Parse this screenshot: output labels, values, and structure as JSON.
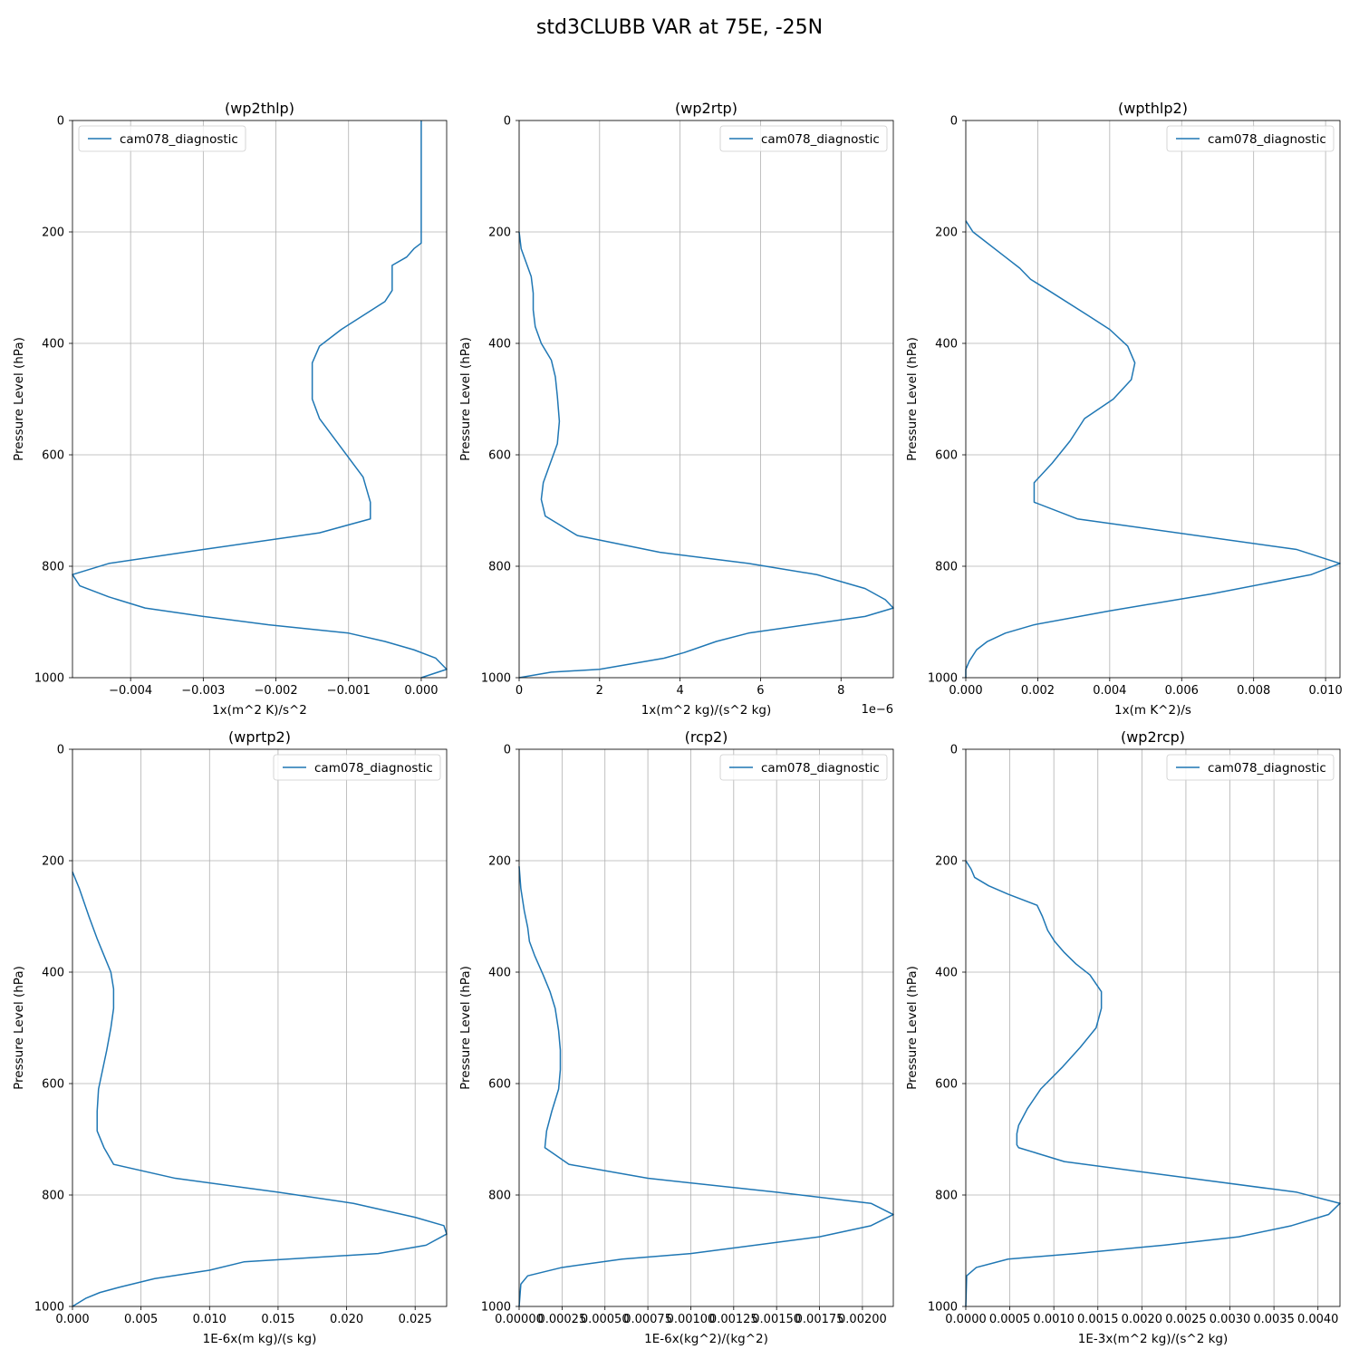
{
  "figure": {
    "title": "std3CLUBB VAR at 75E, -25N"
  },
  "chart_data": [
    {
      "type": "line",
      "title": "(wp2thlp)",
      "xlabel": "1x(m^2 K)/s^2",
      "ylabel": "Pressure Level (hPa)",
      "xlim": [
        -0.0048,
        0.00035
      ],
      "ylim": [
        1000,
        0
      ],
      "xticks": [
        -0.004,
        -0.003,
        -0.002,
        -0.001,
        0.0
      ],
      "xtick_labels": [
        "−0.004",
        "−0.003",
        "−0.002",
        "−0.001",
        "0.000"
      ],
      "yticks": [
        0,
        200,
        400,
        600,
        800,
        1000
      ],
      "ytick_labels": [
        "0",
        "200",
        "400",
        "600",
        "800",
        "1000"
      ],
      "offset_text": "",
      "grid": true,
      "legend": {
        "position": "upper-left",
        "entries": [
          "cam078_diagnostic"
        ]
      },
      "series": [
        {
          "name": "cam078_diagnostic",
          "color": "#1f77b4",
          "x": [
            0.0,
            0.0,
            0.0,
            0.0,
            0.0,
            0.0,
            0.0,
            -0.0001,
            -0.0002,
            -0.0004,
            -0.0004,
            -0.0004,
            -0.0005,
            -0.0008,
            -0.0011,
            -0.0014,
            -0.0015,
            -0.0015,
            -0.0015,
            -0.0014,
            -0.0012,
            -0.001,
            -0.0008,
            -0.0007,
            -0.0007,
            -0.0014,
            -0.003,
            -0.0043,
            -0.0048,
            -0.0047,
            -0.0043,
            -0.0038,
            -0.003,
            -0.0021,
            -0.001,
            -0.0005,
            -0.0001,
            0.0002,
            0.00035,
            0.0
          ],
          "y": [
            0,
            50,
            100,
            150,
            200,
            210,
            220,
            230,
            245,
            260,
            280,
            305,
            325,
            350,
            375,
            405,
            435,
            465,
            500,
            535,
            570,
            605,
            640,
            685,
            715,
            740,
            770,
            795,
            815,
            835,
            855,
            875,
            890,
            905,
            920,
            935,
            950,
            965,
            985,
            1000
          ]
        }
      ]
    },
    {
      "type": "line",
      "title": "(wp2rtp)",
      "xlabel": "1x(m^2 kg)/(s^2 kg)",
      "ylabel": "Pressure Level (hPa)",
      "xlim": [
        0,
        9.3
      ],
      "ylim": [
        1000,
        0
      ],
      "xticks": [
        0,
        2,
        4,
        6,
        8
      ],
      "xtick_labels": [
        "0",
        "2",
        "4",
        "6",
        "8"
      ],
      "yticks": [
        0,
        200,
        400,
        600,
        800,
        1000
      ],
      "ytick_labels": [
        "0",
        "200",
        "400",
        "600",
        "800",
        "1000"
      ],
      "offset_text": "1e−6",
      "grid": true,
      "legend": {
        "position": "upper-right",
        "entries": [
          "cam078_diagnostic"
        ]
      },
      "series": [
        {
          "name": "cam078_diagnostic",
          "color": "#1f77b4",
          "x": [
            0,
            0.05,
            0.3,
            0.35,
            0.35,
            0.4,
            0.55,
            0.8,
            0.9,
            0.95,
            1.0,
            0.95,
            0.75,
            0.6,
            0.55,
            0.65,
            1.45,
            3.5,
            5.7,
            7.4,
            8.6,
            9.1,
            9.3,
            8.6,
            5.7,
            4.9,
            4.1,
            3.6,
            2.8,
            2.0,
            0.8,
            0
          ],
          "y": [
            200,
            230,
            280,
            310,
            340,
            370,
            400,
            430,
            460,
            495,
            540,
            580,
            620,
            650,
            680,
            710,
            745,
            775,
            795,
            815,
            840,
            860,
            875,
            890,
            920,
            935,
            955,
            965,
            975,
            985,
            990,
            1000
          ]
        }
      ]
    },
    {
      "type": "line",
      "title": "(wpthlp2)",
      "xlabel": "1x(m K^2)/s",
      "ylabel": "Pressure Level (hPa)",
      "xlim": [
        0,
        0.0104
      ],
      "ylim": [
        1000,
        0
      ],
      "xticks": [
        0.0,
        0.002,
        0.004,
        0.006,
        0.008,
        0.01
      ],
      "xtick_labels": [
        "0.000",
        "0.002",
        "0.004",
        "0.006",
        "0.008",
        "0.010"
      ],
      "yticks": [
        0,
        200,
        400,
        600,
        800,
        1000
      ],
      "ytick_labels": [
        "0",
        "200",
        "400",
        "600",
        "800",
        "1000"
      ],
      "offset_text": "",
      "grid": true,
      "legend": {
        "position": "upper-right",
        "entries": [
          "cam078_diagnostic"
        ]
      },
      "series": [
        {
          "name": "cam078_diagnostic",
          "color": "#1f77b4",
          "x": [
            0,
            0.0002,
            0.0004,
            0.0011,
            0.0015,
            0.0018,
            0.0023,
            0.0034,
            0.004,
            0.0045,
            0.0047,
            0.0046,
            0.0041,
            0.0033,
            0.0029,
            0.0024,
            0.0019,
            0.0019,
            0.0019,
            0.0031,
            0.0092,
            0.0104,
            0.0096,
            0.0068,
            0.004,
            0.0019,
            0.0011,
            0.0006,
            0.0003,
            0.0001,
            0,
            0
          ],
          "y": [
            180,
            200,
            210,
            245,
            265,
            285,
            305,
            350,
            375,
            405,
            435,
            465,
            500,
            535,
            575,
            615,
            650,
            665,
            685,
            715,
            770,
            795,
            815,
            850,
            880,
            905,
            920,
            935,
            950,
            970,
            985,
            1000
          ]
        }
      ]
    },
    {
      "type": "line",
      "title": "(wprtp2)",
      "xlabel": "1E-6x(m kg)/(s kg)",
      "ylabel": "Pressure Level (hPa)",
      "xlim": [
        0,
        0.0273
      ],
      "ylim": [
        1000,
        0
      ],
      "xticks": [
        0.0,
        0.005,
        0.01,
        0.015,
        0.02,
        0.025
      ],
      "xtick_labels": [
        "0.000",
        "0.005",
        "0.010",
        "0.015",
        "0.020",
        "0.025"
      ],
      "yticks": [
        0,
        200,
        400,
        600,
        800,
        1000
      ],
      "ytick_labels": [
        "0",
        "200",
        "400",
        "600",
        "800",
        "1000"
      ],
      "offset_text": "",
      "grid": true,
      "legend": {
        "position": "upper-right",
        "entries": [
          "cam078_diagnostic"
        ]
      },
      "series": [
        {
          "name": "cam078_diagnostic",
          "color": "#1f77b4",
          "x": [
            0,
            0.0005,
            0.0012,
            0.0018,
            0.0023,
            0.0028,
            0.003,
            0.003,
            0.0028,
            0.0025,
            0.0022,
            0.0019,
            0.0018,
            0.0018,
            0.0023,
            0.003,
            0.0075,
            0.015,
            0.0205,
            0.025,
            0.0271,
            0.0273,
            0.0258,
            0.0223,
            0.0125,
            0.01,
            0.006,
            0.0035,
            0.002,
            0.001,
            0
          ],
          "y": [
            220,
            250,
            300,
            340,
            370,
            400,
            430,
            465,
            500,
            540,
            575,
            610,
            650,
            685,
            715,
            745,
            770,
            795,
            815,
            840,
            855,
            870,
            890,
            905,
            920,
            935,
            950,
            965,
            975,
            985,
            1000
          ]
        }
      ]
    },
    {
      "type": "line",
      "title": "(rcp2)",
      "xlabel": "1E-6x(kg^2)/(kg^2)",
      "ylabel": "Pressure Level (hPa)",
      "xlim": [
        0,
        0.00218
      ],
      "ylim": [
        1000,
        0
      ],
      "xticks": [
        0.0,
        0.00025,
        0.0005,
        0.00075,
        0.001,
        0.00125,
        0.0015,
        0.00175,
        0.002
      ],
      "xtick_labels": [
        "0.00000",
        "0.00025",
        "0.00050",
        "0.00075",
        "0.00100",
        "0.00125",
        "0.00150",
        "0.00175",
        "0.00200"
      ],
      "yticks": [
        0,
        200,
        400,
        600,
        800,
        1000
      ],
      "ytick_labels": [
        "0",
        "200",
        "400",
        "600",
        "800",
        "1000"
      ],
      "offset_text": "",
      "grid": true,
      "legend": {
        "position": "upper-right",
        "entries": [
          "cam078_diagnostic"
        ]
      },
      "series": [
        {
          "name": "cam078_diagnostic",
          "color": "#1f77b4",
          "x": [
            0,
            1e-05,
            3e-05,
            5e-05,
            6e-05,
            9e-05,
            0.00014,
            0.00018,
            0.00021,
            0.00023,
            0.00024,
            0.00024,
            0.00023,
            0.00019,
            0.00016,
            0.00015,
            0.00029,
            0.00075,
            0.0015,
            0.00205,
            0.00218,
            0.00205,
            0.00175,
            0.001,
            0.0006,
            0.00025,
            5e-05,
            1e-05,
            0
          ],
          "y": [
            210,
            250,
            290,
            320,
            345,
            370,
            405,
            435,
            465,
            505,
            540,
            575,
            610,
            650,
            685,
            715,
            745,
            770,
            795,
            815,
            835,
            855,
            875,
            905,
            915,
            930,
            945,
            960,
            1000
          ]
        }
      ]
    },
    {
      "type": "line",
      "title": "(wp2rcp)",
      "xlabel": "1E-3x(m^2 kg)/(s^2 kg)",
      "ylabel": "Pressure Level (hPa)",
      "xlim": [
        0,
        0.00425
      ],
      "ylim": [
        1000,
        0
      ],
      "xticks": [
        0.0,
        0.0005,
        0.001,
        0.0015,
        0.002,
        0.0025,
        0.003,
        0.0035,
        0.004
      ],
      "xtick_labels": [
        "0.0000",
        "0.0005",
        "0.0010",
        "0.0015",
        "0.0020",
        "0.0025",
        "0.0030",
        "0.0035",
        "0.0040"
      ],
      "yticks": [
        0,
        200,
        400,
        600,
        800,
        1000
      ],
      "ytick_labels": [
        "0",
        "200",
        "400",
        "600",
        "800",
        "1000"
      ],
      "offset_text": "",
      "grid": true,
      "legend": {
        "position": "upper-right",
        "entries": [
          "cam078_diagnostic"
        ]
      },
      "series": [
        {
          "name": "cam078_diagnostic",
          "color": "#1f77b4",
          "x": [
            0,
            6e-05,
            0.0001,
            0.00026,
            0.00048,
            0.00081,
            0.00087,
            0.00093,
            0.00101,
            0.00112,
            0.00125,
            0.00141,
            0.00154,
            0.00154,
            0.00148,
            0.0013,
            0.0011,
            0.00085,
            0.0007,
            0.0006,
            0.00058,
            0.00058,
            0.0006,
            0.00112,
            0.00255,
            0.00376,
            0.00425,
            0.00412,
            0.0037,
            0.0031,
            0.00225,
            0.00125,
            0.00048,
            0.00012,
            1e-05,
            0
          ],
          "y": [
            200,
            215,
            230,
            245,
            260,
            280,
            300,
            325,
            345,
            365,
            385,
            405,
            435,
            465,
            500,
            535,
            570,
            610,
            645,
            675,
            690,
            710,
            715,
            740,
            770,
            795,
            815,
            835,
            855,
            875,
            890,
            905,
            915,
            930,
            945,
            1000
          ]
        }
      ]
    }
  ]
}
